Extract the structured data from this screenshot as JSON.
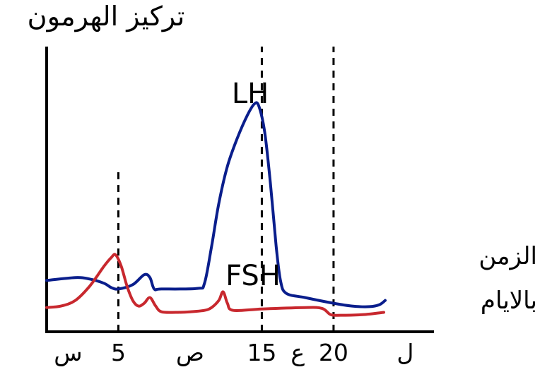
{
  "chart_data": {
    "type": "line",
    "ylabel": "تركيز الهرمون",
    "xlabel": [
      "الزمن",
      "بالايام"
    ],
    "xlim": [
      0,
      27
    ],
    "ylim": [
      0,
      100
    ],
    "grid": false,
    "x_ticks": [
      {
        "x": 1.5,
        "label": "س"
      },
      {
        "x": 5,
        "label": "5"
      },
      {
        "x": 10,
        "label": "ص"
      },
      {
        "x": 15,
        "label": "15"
      },
      {
        "x": 17.5,
        "label": "ع"
      },
      {
        "x": 20,
        "label": "20"
      },
      {
        "x": 25,
        "label": "ل"
      }
    ],
    "marker_lines": [
      {
        "x": 5,
        "y_top": 56
      },
      {
        "x": 15,
        "y_top": 100
      },
      {
        "x": 20,
        "y_top": 100
      }
    ],
    "series": [
      {
        "name": "LH",
        "color": "#0a1e8c",
        "points": [
          [
            0,
            18
          ],
          [
            2,
            19
          ],
          [
            3,
            18.5
          ],
          [
            4,
            17
          ],
          [
            4.5,
            15.5
          ],
          [
            5,
            15
          ],
          [
            6,
            16.5
          ],
          [
            6.8,
            20
          ],
          [
            7.2,
            19
          ],
          [
            7.5,
            15
          ],
          [
            8,
            15
          ],
          [
            10.5,
            15.2
          ],
          [
            11,
            17
          ],
          [
            11.5,
            30
          ],
          [
            12,
            45
          ],
          [
            12.6,
            58
          ],
          [
            13.3,
            68
          ],
          [
            14,
            76
          ],
          [
            14.5,
            80
          ],
          [
            14.8,
            79
          ],
          [
            15.2,
            70
          ],
          [
            15.6,
            52
          ],
          [
            16,
            30
          ],
          [
            16.3,
            18
          ],
          [
            16.7,
            13.5
          ],
          [
            18,
            12
          ],
          [
            20,
            10
          ],
          [
            21.3,
            9
          ],
          [
            22.5,
            8.8
          ],
          [
            23.2,
            9.5
          ],
          [
            23.6,
            11
          ]
        ]
      },
      {
        "name": "FSH",
        "color": "#c8282e",
        "points": [
          [
            0,
            8.5
          ],
          [
            1,
            9
          ],
          [
            2,
            11
          ],
          [
            3,
            16
          ],
          [
            4,
            23
          ],
          [
            4.5,
            26
          ],
          [
            4.8,
            27
          ],
          [
            5.2,
            23
          ],
          [
            5.6,
            16
          ],
          [
            6,
            11
          ],
          [
            6.4,
            9
          ],
          [
            6.8,
            10
          ],
          [
            7.2,
            12
          ],
          [
            7.6,
            9
          ],
          [
            8,
            7
          ],
          [
            9,
            6.8
          ],
          [
            10,
            7
          ],
          [
            11,
            7.5
          ],
          [
            11.5,
            8.5
          ],
          [
            12,
            11
          ],
          [
            12.3,
            14
          ],
          [
            12.6,
            10
          ],
          [
            13,
            7.5
          ],
          [
            15,
            8
          ],
          [
            18,
            8.5
          ],
          [
            19.2,
            8.2
          ],
          [
            19.8,
            6
          ],
          [
            20.5,
            5.8
          ],
          [
            22,
            6
          ],
          [
            23.5,
            6.8
          ]
        ]
      }
    ]
  }
}
